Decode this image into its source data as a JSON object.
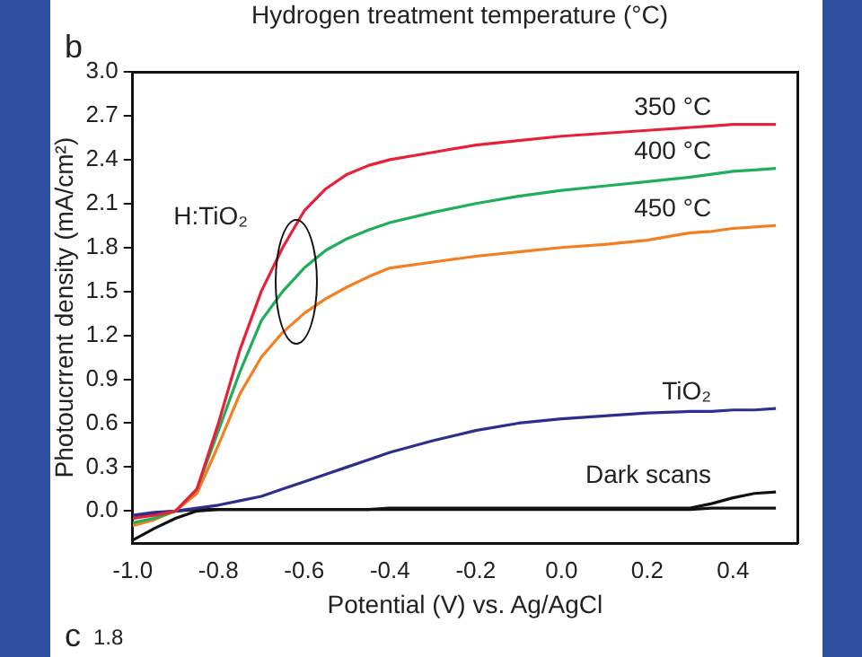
{
  "chart_data": {
    "type": "line",
    "xlabel": "Potential (V) vs. Ag/AgCl",
    "ylabel": "Photoucrrent density (mA/cm²)",
    "xlim": [
      -1.0,
      0.55
    ],
    "xticks": [
      {
        "value": -1.0,
        "label": "-1.0"
      },
      {
        "value": -0.8,
        "label": "-0.8"
      },
      {
        "value": -0.6,
        "label": "-0.6"
      },
      {
        "value": -0.4,
        "label": "-0.4"
      },
      {
        "value": -0.2,
        "label": "-0.2"
      },
      {
        "value": 0,
        "label": "0.0"
      },
      {
        "value": 0.2,
        "label": "0.2"
      },
      {
        "value": 0.4,
        "label": "0.4"
      }
    ],
    "ylim": [
      -0.22,
      3.0
    ],
    "yticks": [
      {
        "value": 0,
        "label": "0.0"
      },
      {
        "value": 0.3,
        "label": "0.3"
      },
      {
        "value": 0.6,
        "label": "0.6"
      },
      {
        "value": 0.9,
        "label": "0.9"
      },
      {
        "value": 1.2,
        "label": "1.2"
      },
      {
        "value": 1.5,
        "label": "1.5"
      },
      {
        "value": 1.8,
        "label": "1.8"
      },
      {
        "value": 2.1,
        "label": "2.1"
      },
      {
        "value": 2.4,
        "label": "2.4"
      },
      {
        "value": 2.7,
        "label": "2.7"
      },
      {
        "value": 3.0,
        "label": "3.0"
      }
    ],
    "grid": false,
    "legend": false,
    "marker": "none",
    "line_style": "solid",
    "x": [
      -1.0,
      -0.95,
      -0.9,
      -0.85,
      -0.8,
      -0.75,
      -0.7,
      -0.65,
      -0.6,
      -0.55,
      -0.5,
      -0.45,
      -0.4,
      -0.3,
      -0.2,
      -0.1,
      0,
      0.1,
      0.2,
      0.3,
      0.35,
      0.4,
      0.45,
      0.5
    ],
    "series": [
      {
        "name": "350 °C",
        "color": "#e8203a",
        "values": [
          -0.05,
          -0.03,
          0.0,
          0.15,
          0.6,
          1.1,
          1.5,
          1.8,
          2.05,
          2.2,
          2.3,
          2.36,
          2.4,
          2.45,
          2.5,
          2.53,
          2.56,
          2.58,
          2.6,
          2.62,
          2.63,
          2.64,
          2.64,
          2.64
        ]
      },
      {
        "name": "400 °C",
        "color": "#1fae5a",
        "values": [
          -0.08,
          -0.05,
          0.0,
          0.15,
          0.55,
          0.95,
          1.3,
          1.5,
          1.66,
          1.78,
          1.86,
          1.92,
          1.97,
          2.04,
          2.1,
          2.15,
          2.19,
          2.22,
          2.25,
          2.28,
          2.3,
          2.32,
          2.33,
          2.34
        ]
      },
      {
        "name": "450 °C",
        "color": "#f57f20",
        "values": [
          -0.1,
          -0.06,
          0.0,
          0.12,
          0.45,
          0.8,
          1.05,
          1.22,
          1.35,
          1.45,
          1.53,
          1.6,
          1.66,
          1.7,
          1.74,
          1.77,
          1.8,
          1.82,
          1.85,
          1.9,
          1.91,
          1.93,
          1.94,
          1.95
        ]
      },
      {
        "name": "TiO₂",
        "color": "#2e2e8e",
        "values": [
          -0.03,
          -0.01,
          0.0,
          0.02,
          0.04,
          0.07,
          0.1,
          0.15,
          0.2,
          0.25,
          0.3,
          0.35,
          0.4,
          0.48,
          0.55,
          0.6,
          0.63,
          0.65,
          0.67,
          0.68,
          0.68,
          0.69,
          0.69,
          0.7
        ]
      },
      {
        "name": "Dark scans",
        "color": "#111111",
        "values": [
          -0.2,
          -0.12,
          -0.05,
          0.0,
          0.01,
          0.01,
          0.01,
          0.01,
          0.01,
          0.01,
          0.01,
          0.01,
          0.02,
          0.02,
          0.02,
          0.02,
          0.02,
          0.02,
          0.02,
          0.02,
          0.05,
          0.09,
          0.12,
          0.13
        ]
      },
      {
        "color": "#111111",
        "values": [
          -0.05,
          -0.02,
          0.0,
          0.01,
          0.01,
          0.01,
          0.01,
          0.01,
          0.01,
          0.01,
          0.01,
          0.01,
          0.01,
          0.01,
          0.01,
          0.01,
          0.01,
          0.01,
          0.01,
          0.01,
          0.02,
          0.02,
          0.02,
          0.02
        ]
      }
    ],
    "annotations": [
      "Hydrogen treatment temperature (°C)",
      "b",
      "c",
      "1.8",
      {
        "text": "H:TiO₂",
        "x": -0.62,
        "y": 1.57
      }
    ]
  }
}
